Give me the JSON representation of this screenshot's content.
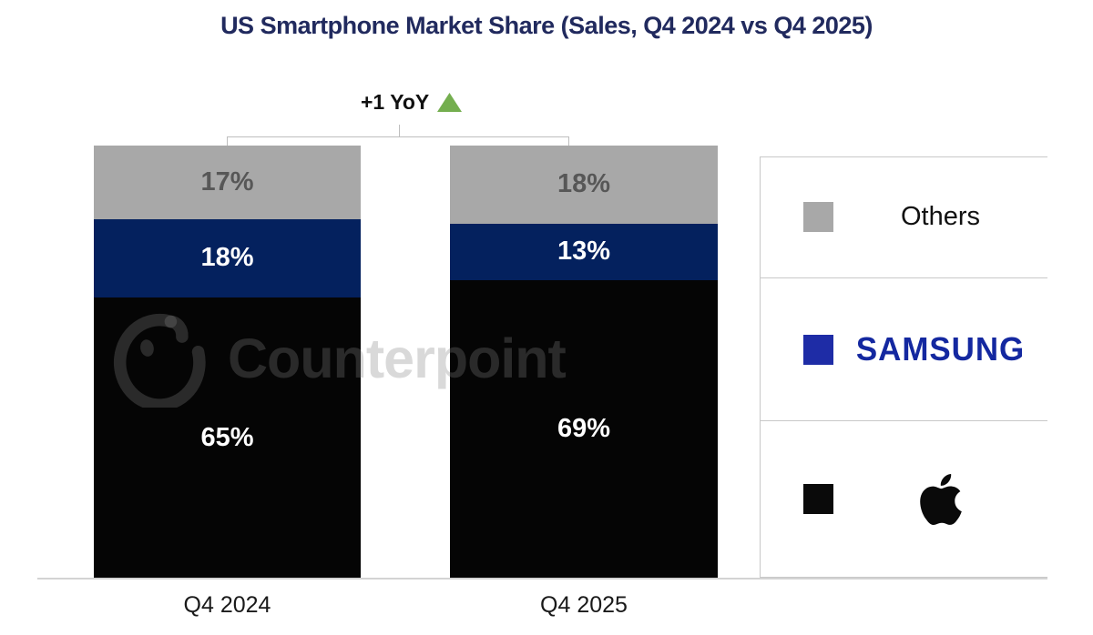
{
  "title": "US Smartphone Market Share (Sales, Q4 2024 vs Q4 2025)",
  "annotation": {
    "label": "+1 YoY",
    "direction": "up",
    "arrow_color": "#74AE4F"
  },
  "watermark": {
    "brand": "Counterpoint"
  },
  "chart_data": {
    "type": "bar",
    "stacked": true,
    "unit": "%",
    "title": "US Smartphone Market Share (Sales, Q4 2024 vs Q4 2025)",
    "categories": [
      "Q4 2024",
      "Q4 2025"
    ],
    "series": [
      {
        "name": "Others",
        "color": "#A8A8A8",
        "label_color": "#575757",
        "values": [
          17,
          18
        ]
      },
      {
        "name": "Samsung",
        "color": "#04215E",
        "label_color": "#FFFFFF",
        "values": [
          18,
          13
        ]
      },
      {
        "name": "Apple",
        "color": "#050505",
        "label_color": "#FFFFFF",
        "values": [
          65,
          69
        ]
      }
    ],
    "ylim": [
      0,
      100
    ],
    "grid": false,
    "legend_position": "right",
    "stack_order_top_to_bottom": [
      "Others",
      "Samsung",
      "Apple"
    ],
    "yoy_annotation": "+1 YoY"
  },
  "legend": {
    "items": [
      {
        "label": "Others",
        "swatch_color": "#A8A8A8",
        "display": "text"
      },
      {
        "label": "SAMSUNG",
        "swatch_color": "#1E2CA6",
        "display": "wordmark",
        "wordmark_color": "#1428A0"
      },
      {
        "label": "Apple",
        "swatch_color": "#0A0A0A",
        "display": "apple-logo"
      }
    ]
  },
  "x_axis": {
    "labels": [
      "Q4 2024",
      "Q4 2025"
    ]
  },
  "colors": {
    "title": "#212A5E",
    "bracket_line": "#BEBEBE",
    "axis_line": "#D3D3D3",
    "background": "#FFFFFF"
  }
}
